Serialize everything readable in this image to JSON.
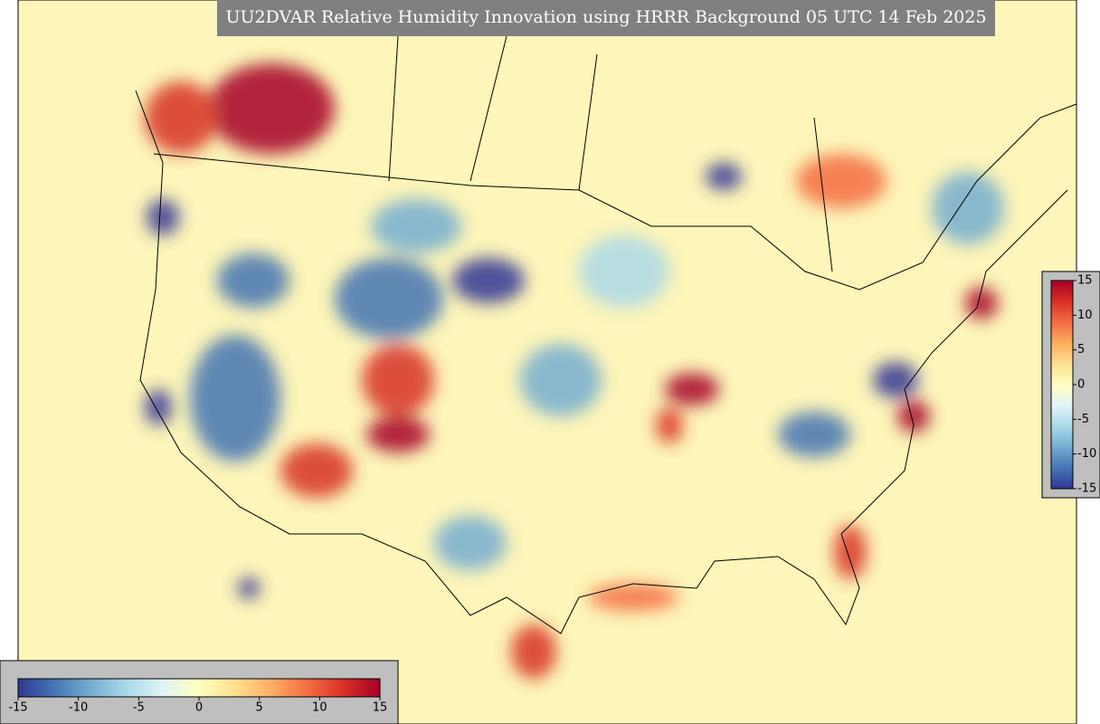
{
  "title": "UU2DVAR Relative Humidity Innovation using HRRR Background 05 UTC 14 Feb 2025",
  "colorbar_horizontal": {
    "range": [
      -15,
      15
    ],
    "ticks": [
      -15,
      -10,
      -5,
      0,
      5,
      10,
      15
    ]
  },
  "colorbar_vertical": {
    "range": [
      -15,
      15
    ],
    "ticks": [
      15,
      10,
      5,
      0,
      -5,
      -10,
      -15
    ]
  },
  "colormap": [
    "#313695",
    "#4575b4",
    "#74add1",
    "#abd9e9",
    "#e0f3f8",
    "#ffffbf",
    "#fee090",
    "#fdae61",
    "#f46d43",
    "#d73027",
    "#a50026"
  ]
}
